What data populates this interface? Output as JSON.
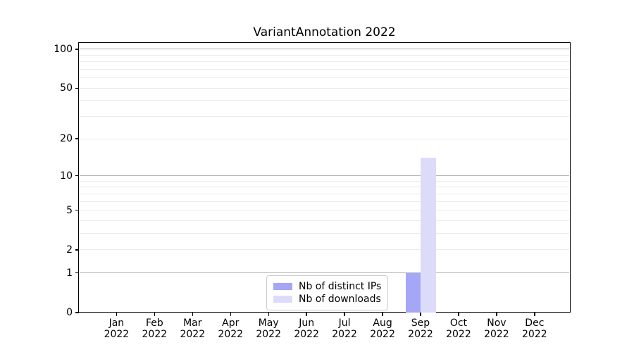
{
  "title": "VariantAnnotation 2022",
  "chart_data": {
    "type": "bar",
    "title": "VariantAnnotation 2022",
    "categories": [
      {
        "month": "Jan",
        "year": "2022"
      },
      {
        "month": "Feb",
        "year": "2022"
      },
      {
        "month": "Mar",
        "year": "2022"
      },
      {
        "month": "Apr",
        "year": "2022"
      },
      {
        "month": "May",
        "year": "2022"
      },
      {
        "month": "Jun",
        "year": "2022"
      },
      {
        "month": "Jul",
        "year": "2022"
      },
      {
        "month": "Aug",
        "year": "2022"
      },
      {
        "month": "Sep",
        "year": "2022"
      },
      {
        "month": "Oct",
        "year": "2022"
      },
      {
        "month": "Nov",
        "year": "2022"
      },
      {
        "month": "Dec",
        "year": "2022"
      }
    ],
    "series": [
      {
        "name": "Nb of distinct IPs",
        "color": "#a6a6f7",
        "values": [
          0,
          0,
          0,
          0,
          0,
          0,
          0,
          0,
          1,
          0,
          0,
          0
        ]
      },
      {
        "name": "Nb of downloads",
        "color": "#dcdcfa",
        "values": [
          0,
          0,
          0,
          0,
          0,
          0,
          0,
          0,
          14,
          0,
          0,
          0
        ]
      }
    ],
    "xlabel": "",
    "ylabel": "",
    "yscale": "log1p",
    "ylim": [
      0,
      113
    ],
    "ytick_values": [
      0,
      1,
      2,
      5,
      10,
      20,
      50,
      100
    ],
    "ytick_labels": [
      "0",
      "1",
      "2",
      "5",
      "10",
      "20",
      "50",
      "100"
    ],
    "major_gridlines": [
      1,
      10,
      100
    ],
    "minor_gridlines": [
      2,
      3,
      4,
      5,
      6,
      7,
      8,
      9,
      20,
      30,
      40,
      50,
      60,
      70,
      80,
      90
    ],
    "grid": true,
    "legend_position": "inside-bottom-center",
    "colors": {
      "major_grid": "#b3b3b3",
      "minor_grid": "#ebebeb",
      "spine": "#000000",
      "background": "#ffffff"
    }
  }
}
